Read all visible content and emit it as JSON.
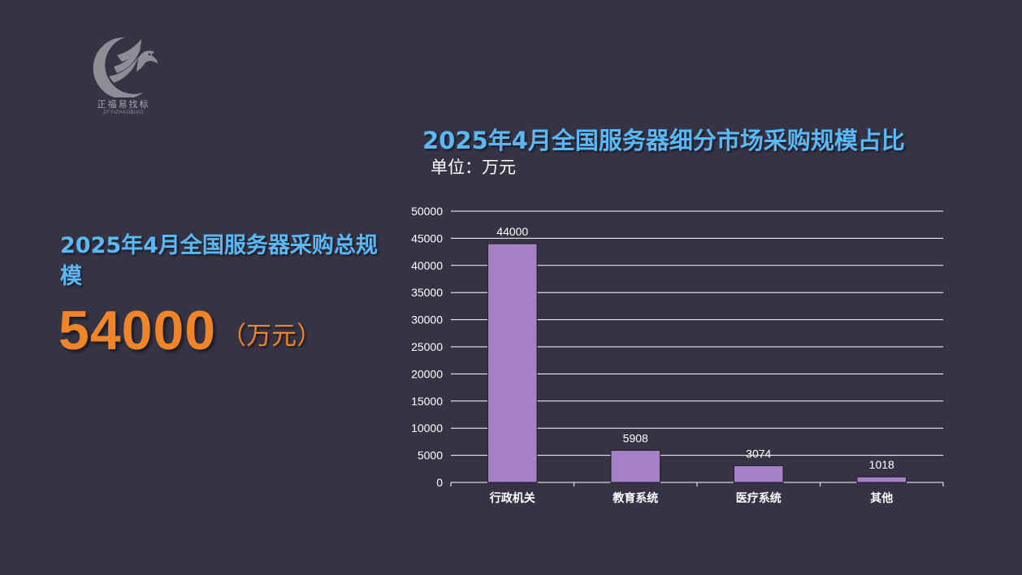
{
  "logo": {
    "icon": "eagle-icon",
    "text_cn": "正福易找标",
    "text_en": "ZFYIZHAOBIAO"
  },
  "summary": {
    "title": "2025年4月全国服务器采购总规模",
    "value": "54000",
    "unit": "（万元）"
  },
  "colors": {
    "background": "#363444",
    "title_blue": "#5bb8f5",
    "highlight_orange": "#f08428",
    "bar_purple": "#a781c7"
  },
  "chart_data": {
    "type": "bar",
    "title": "2025年4月全国服务器细分市场采购规模占比",
    "subtitle": "单位：万元",
    "categories": [
      "行政机关",
      "教育系统",
      "医疗系统",
      "其他"
    ],
    "values": [
      44000,
      5908,
      3074,
      1018
    ],
    "data_labels": [
      "44000",
      "5908",
      "3074",
      "1018"
    ],
    "ylim": [
      0,
      50000
    ],
    "yticks": [
      "0",
      "5000",
      "10000",
      "15000",
      "20000",
      "25000",
      "30000",
      "35000",
      "40000",
      "45000",
      "50000"
    ],
    "grid": true,
    "legend": "none"
  }
}
